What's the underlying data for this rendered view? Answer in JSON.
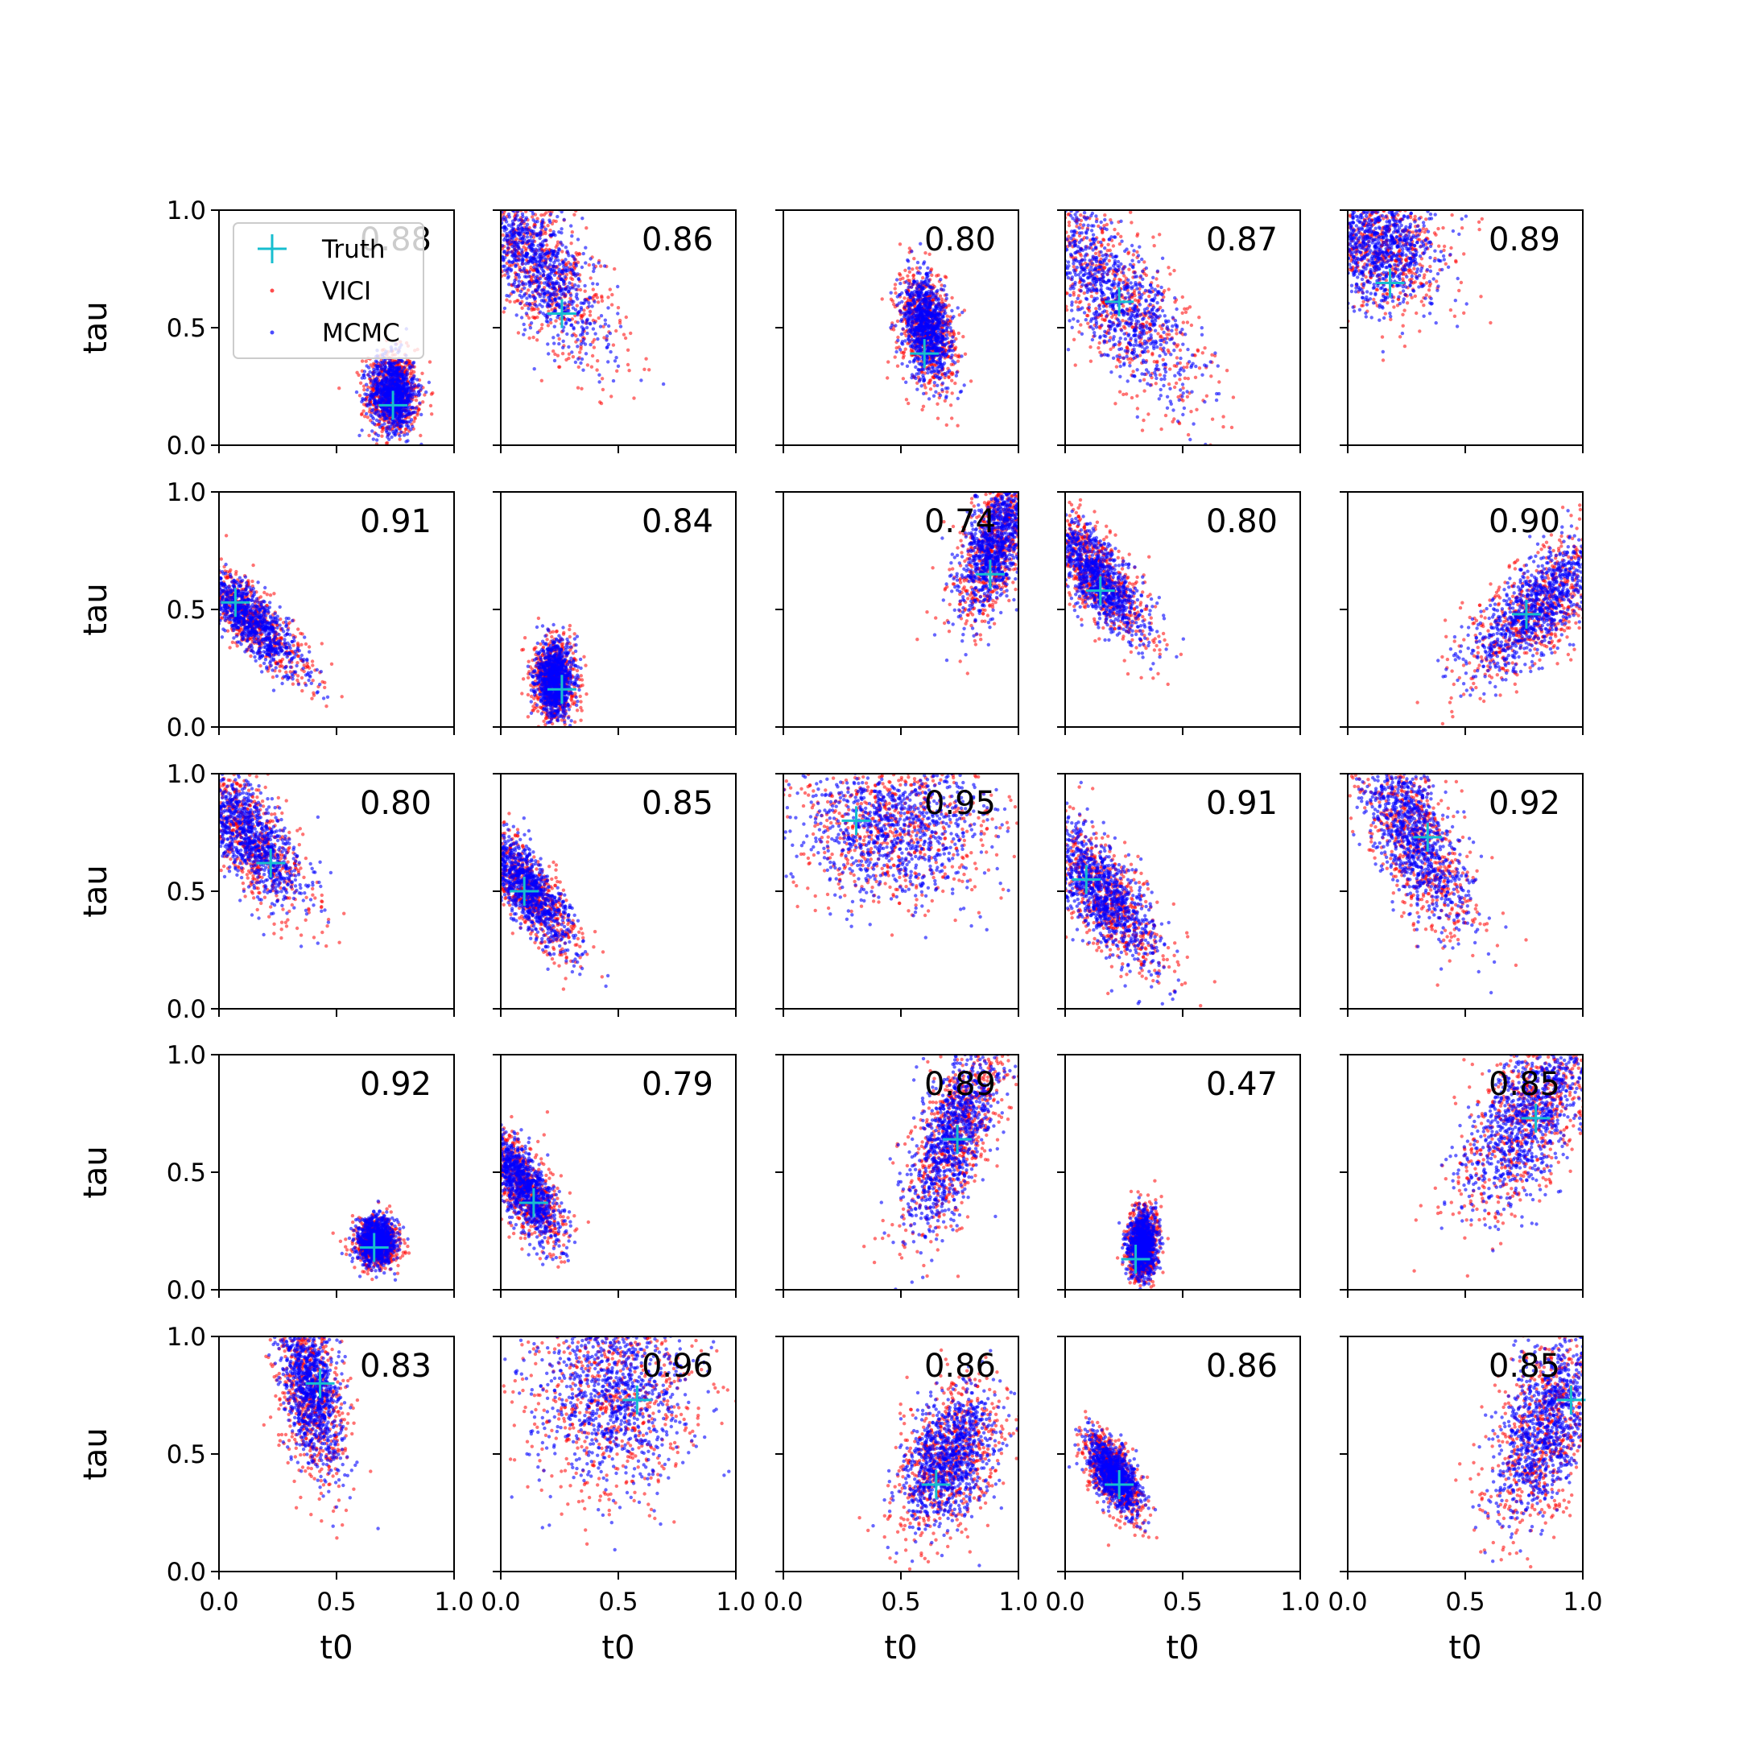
{
  "legend": {
    "placement": "top-left of first panel",
    "entries": [
      {
        "label": "Truth",
        "marker": "plus",
        "color": "#17becf"
      },
      {
        "label": "VICI",
        "marker": "dot",
        "color": "#ff0000"
      },
      {
        "label": "MCMC",
        "marker": "dot",
        "color": "#0000ff"
      }
    ]
  },
  "colors": {
    "truth": "#17becf",
    "vici": "#ff0000",
    "mcmc": "#0000ff"
  },
  "chart_data": {
    "type": "scatter",
    "layout": "5x5 grid",
    "xlabel": "t0",
    "ylabel": "tau",
    "xlim": [
      0,
      1
    ],
    "ylim": [
      0,
      1
    ],
    "xticks": [
      "0.0",
      "0.5",
      "1.0"
    ],
    "yticks": [
      "0.0",
      "0.5",
      "1.0"
    ],
    "grid": false,
    "panels": [
      {
        "score": "0.88",
        "truth": [
          0.74,
          0.17
        ],
        "cloud": {
          "cx": 0.74,
          "cy": 0.22,
          "sx": 0.05,
          "sy": 0.08,
          "rot": 5
        }
      },
      {
        "score": "0.86",
        "truth": [
          0.26,
          0.56
        ],
        "cloud": {
          "cx": 0.15,
          "cy": 0.78,
          "sx": 0.09,
          "sy": 0.22,
          "rot": 35
        }
      },
      {
        "score": "0.80",
        "truth": [
          0.6,
          0.39
        ],
        "cloud": {
          "cx": 0.61,
          "cy": 0.5,
          "sx": 0.05,
          "sy": 0.11,
          "rot": 10
        }
      },
      {
        "score": "0.87",
        "truth": [
          0.23,
          0.61
        ],
        "cloud": {
          "cx": 0.2,
          "cy": 0.65,
          "sx": 0.1,
          "sy": 0.28,
          "rot": 35
        }
      },
      {
        "score": "0.89",
        "truth": [
          0.18,
          0.69
        ],
        "cloud": {
          "cx": 0.14,
          "cy": 0.86,
          "sx": 0.12,
          "sy": 0.14,
          "rot": 15
        }
      },
      {
        "score": "0.91",
        "truth": [
          0.07,
          0.53
        ],
        "cloud": {
          "cx": 0.12,
          "cy": 0.47,
          "sx": 0.05,
          "sy": 0.16,
          "rot": 45
        }
      },
      {
        "score": "0.84",
        "truth": [
          0.26,
          0.16
        ],
        "cloud": {
          "cx": 0.23,
          "cy": 0.2,
          "sx": 0.04,
          "sy": 0.08,
          "rot": 0
        }
      },
      {
        "score": "0.74",
        "truth": [
          0.88,
          0.65
        ],
        "cloud": {
          "cx": 0.9,
          "cy": 0.78,
          "sx": 0.06,
          "sy": 0.16,
          "rot": -20
        }
      },
      {
        "score": "0.80",
        "truth": [
          0.15,
          0.58
        ],
        "cloud": {
          "cx": 0.14,
          "cy": 0.64,
          "sx": 0.06,
          "sy": 0.16,
          "rot": 35
        }
      },
      {
        "score": "0.90",
        "truth": [
          0.76,
          0.48
        ],
        "cloud": {
          "cx": 0.82,
          "cy": 0.52,
          "sx": 0.08,
          "sy": 0.2,
          "rot": -45
        }
      },
      {
        "score": "0.80",
        "truth": [
          0.22,
          0.62
        ],
        "cloud": {
          "cx": 0.12,
          "cy": 0.74,
          "sx": 0.07,
          "sy": 0.18,
          "rot": 35
        }
      },
      {
        "score": "0.85",
        "truth": [
          0.1,
          0.5
        ],
        "cloud": {
          "cx": 0.12,
          "cy": 0.5,
          "sx": 0.05,
          "sy": 0.15,
          "rot": 35
        }
      },
      {
        "score": "0.95",
        "truth": [
          0.31,
          0.8
        ],
        "cloud": {
          "cx": 0.47,
          "cy": 0.78,
          "sx": 0.2,
          "sy": 0.16,
          "rot": 0
        }
      },
      {
        "score": "0.91",
        "truth": [
          0.09,
          0.55
        ],
        "cloud": {
          "cx": 0.16,
          "cy": 0.49,
          "sx": 0.07,
          "sy": 0.18,
          "rot": 35
        }
      },
      {
        "score": "0.92",
        "truth": [
          0.34,
          0.73
        ],
        "cloud": {
          "cx": 0.28,
          "cy": 0.74,
          "sx": 0.08,
          "sy": 0.22,
          "rot": 25
        }
      },
      {
        "score": "0.92",
        "truth": [
          0.66,
          0.18
        ],
        "cloud": {
          "cx": 0.67,
          "cy": 0.2,
          "sx": 0.04,
          "sy": 0.05,
          "rot": 0
        }
      },
      {
        "score": "0.79",
        "truth": [
          0.14,
          0.37
        ],
        "cloud": {
          "cx": 0.1,
          "cy": 0.44,
          "sx": 0.05,
          "sy": 0.13,
          "rot": 30
        }
      },
      {
        "score": "0.89",
        "truth": [
          0.74,
          0.64
        ],
        "cloud": {
          "cx": 0.73,
          "cy": 0.67,
          "sx": 0.07,
          "sy": 0.22,
          "rot": -20
        }
      },
      {
        "score": "0.47",
        "truth": [
          0.3,
          0.13
        ],
        "cloud": {
          "cx": 0.33,
          "cy": 0.19,
          "sx": 0.03,
          "sy": 0.07,
          "rot": 0
        }
      },
      {
        "score": "0.85",
        "truth": [
          0.8,
          0.73
        ],
        "cloud": {
          "cx": 0.78,
          "cy": 0.76,
          "sx": 0.1,
          "sy": 0.22,
          "rot": -30
        }
      },
      {
        "score": "0.83",
        "truth": [
          0.43,
          0.8
        ],
        "cloud": {
          "cx": 0.39,
          "cy": 0.78,
          "sx": 0.06,
          "sy": 0.18,
          "rot": 10
        }
      },
      {
        "score": "0.96",
        "truth": [
          0.58,
          0.73
        ],
        "cloud": {
          "cx": 0.48,
          "cy": 0.75,
          "sx": 0.17,
          "sy": 0.2,
          "rot": 0
        }
      },
      {
        "score": "0.86",
        "truth": [
          0.65,
          0.37
        ],
        "cloud": {
          "cx": 0.7,
          "cy": 0.48,
          "sx": 0.09,
          "sy": 0.16,
          "rot": -25
        }
      },
      {
        "score": "0.86",
        "truth": [
          0.23,
          0.37
        ],
        "cloud": {
          "cx": 0.21,
          "cy": 0.41,
          "sx": 0.04,
          "sy": 0.09,
          "rot": 30
        }
      },
      {
        "score": "0.85",
        "truth": [
          0.95,
          0.73
        ],
        "cloud": {
          "cx": 0.84,
          "cy": 0.62,
          "sx": 0.09,
          "sy": 0.22,
          "rot": -20
        }
      }
    ]
  }
}
